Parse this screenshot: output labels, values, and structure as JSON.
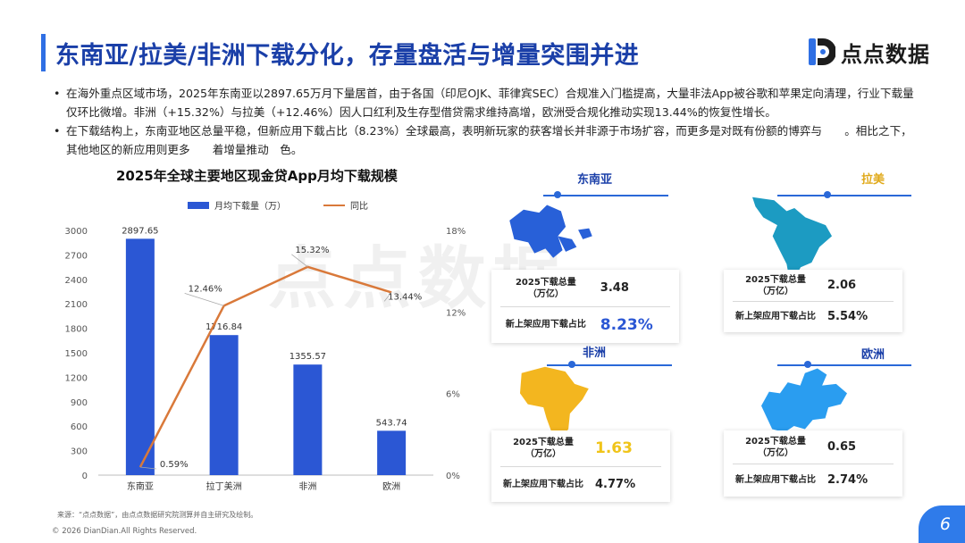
{
  "page": {
    "title": "东南亚/拉美/非洲下载分化，存量盘活与增量突围并进",
    "logo_text": "点点数据",
    "logo_icon": "dd-logo-icon",
    "bullets": [
      "在海外重点区域市场，2025年东南亚以2897.65万月下量居首，由于各国（印尼OJK、菲律宾SEC）合规准入门槛提高，大量非法App被谷歌和苹果定向清理，行业下载量仅环比微增。非洲（+15.32%）与拉美（+12.46%）因人口红利及生存型借贷需求维持高增，欧洲受合规化推动实现13.44%的恢复性增长。",
      "在下载结构上，东南亚地区总量平稳，但新应用下载占比（8.23%）全球最高，表明新玩家的获客增长并非源于市场扩容，而更多是对既有份额的博弈与　　。相比之下，其他地区的新应用则更多　　着增量推动　色。"
    ],
    "watermark": "点点数据",
    "source": "来源：“点点数据”，由点点数据研究院测算并自主研究及绘制。",
    "copyright": "© 2026 DianDian.All Rights Reserved.",
    "page_number": "6",
    "accent_color": "#2f6fe4"
  },
  "chart_data": {
    "type": "bar+line",
    "title": "2025年全球主要地区现金贷App月均下载规模",
    "categories": [
      "东南亚",
      "拉丁美洲",
      "非洲",
      "欧洲"
    ],
    "series": [
      {
        "name": "月均下载量（万）",
        "type": "bar",
        "axis": "left",
        "values": [
          2897.65,
          1716.84,
          1355.57,
          543.74
        ],
        "labels": [
          "2897.65",
          "1716.84",
          "1355.57",
          "543.74"
        ],
        "color": "#2b57d4"
      },
      {
        "name": "同比",
        "type": "line",
        "axis": "right",
        "values": [
          0.59,
          12.46,
          15.32,
          13.44
        ],
        "labels": [
          "0.59%",
          "12.46%",
          "15.32%",
          "13.44%"
        ],
        "color": "#d9793a"
      }
    ],
    "y_left": {
      "ticks": [
        0,
        300,
        600,
        900,
        1200,
        1500,
        1800,
        2100,
        2400,
        2700,
        3000
      ],
      "tick_labels": [
        "0",
        "300",
        "600",
        "900",
        "1200",
        "1500",
        "1800",
        "2100",
        "2400",
        "2700",
        "3000"
      ],
      "min": 0,
      "max": 3000
    },
    "y_right": {
      "ticks": [
        0,
        6,
        12,
        18
      ],
      "tick_labels": [
        "0%",
        "6%",
        "12%",
        "18%"
      ],
      "min": 0,
      "max": 18
    },
    "grid": false,
    "legend_position": "top"
  },
  "regions": [
    {
      "key": "sea",
      "name": "东南亚",
      "name_color": "#1a3fa8",
      "map_icon": "southeast-asia-map-icon",
      "map_color": "#2860d8",
      "total_label": "2025下载总量\n（万亿）",
      "total_value": "3.48",
      "total_color": "#222222",
      "new_label": "新上架应用下载占比",
      "new_value": "8.23%",
      "new_color": "#2b57d4"
    },
    {
      "key": "latam",
      "name": "拉美",
      "name_color": "#e0a91a",
      "map_icon": "latin-america-map-icon",
      "map_color": "#1c9bc2",
      "total_label": "2025下载总量\n（万亿）",
      "total_value": "2.06",
      "total_color": "#222222",
      "new_label": "新上架应用下载占比",
      "new_value": "5.54%",
      "new_color": "#222222"
    },
    {
      "key": "africa",
      "name": "非洲",
      "name_color": "#1a3fa8",
      "map_icon": "africa-map-icon",
      "map_color": "#f3b61f",
      "total_label": "2025下载总量\n（万亿）",
      "total_value": "1.63",
      "total_color": "#f0c419",
      "new_label": "新上架应用下载占比",
      "new_value": "4.77%",
      "new_color": "#222222"
    },
    {
      "key": "europe",
      "name": "欧洲",
      "name_color": "#1a3fa8",
      "map_icon": "europe-map-icon",
      "map_color": "#2a9df0",
      "total_label": "2025下载总量\n（万亿）",
      "total_value": "0.65",
      "total_color": "#222222",
      "new_label": "新上架应用下载占比",
      "new_value": "2.74%",
      "new_color": "#222222"
    }
  ]
}
